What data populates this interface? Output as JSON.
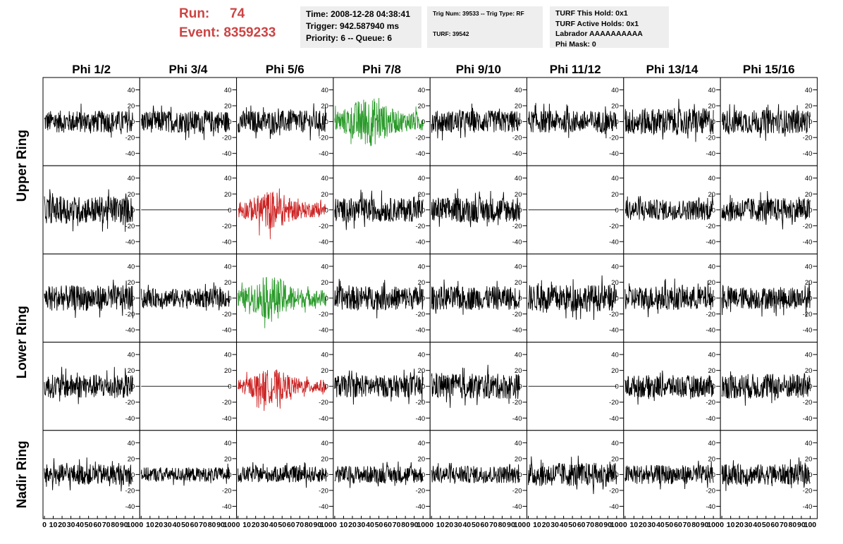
{
  "header": {
    "run_label": "Run:",
    "run_value": "74",
    "event_label": "Event:",
    "event_value": "8359233",
    "time_line": "Time: 2008-12-28 04:38:41",
    "trigger_line": "Trigger: 942.587940 ms",
    "priority_line": "Priority: 6 -- Queue: 6",
    "trig_line": "Trig Num: 39533 -- Trig Type: RF",
    "turf_line": "TURF: 39542",
    "turf_hold_line": "TURF This Hold: 0x1",
    "turf_active_line": "TURF Active Holds: 0x1",
    "labrador_line": "Labrador AAAAAAAAAA",
    "phi_mask_line": "Phi Mask: 0"
  },
  "chart_data": {
    "type": "line",
    "columns": [
      "Phi 1/2",
      "Phi 3/4",
      "Phi 5/6",
      "Phi 7/8",
      "Phi 9/10",
      "Phi 11/12",
      "Phi 13/14",
      "Phi 15/16"
    ],
    "ring_labels": [
      {
        "text": "Upper Ring",
        "rows": [
          0,
          1
        ]
      },
      {
        "text": "Lower Ring",
        "rows": [
          2,
          3
        ]
      },
      {
        "text": "Nadir Ring",
        "rows": [
          4,
          4
        ]
      }
    ],
    "xlim": [
      0,
      100
    ],
    "ylim": [
      -52,
      52
    ],
    "yticks": [
      -40,
      -20,
      0,
      20,
      40
    ],
    "xticks": [
      0,
      10,
      20,
      30,
      40,
      50,
      60,
      70,
      80,
      90,
      100
    ],
    "colors": {
      "normal": "#000000",
      "triggered": "#2a9a2a",
      "l2": "#cc2222"
    },
    "panels": [
      [
        {
          "state": "normal",
          "amp": 14
        },
        {
          "state": "normal",
          "amp": 14
        },
        {
          "state": "normal",
          "amp": 14
        },
        {
          "state": "triggered",
          "amp": 22
        },
        {
          "state": "normal",
          "amp": 14
        },
        {
          "state": "normal",
          "amp": 14
        },
        {
          "state": "normal",
          "amp": 17
        },
        {
          "state": "normal",
          "amp": 15
        }
      ],
      [
        {
          "state": "normal",
          "amp": 17
        },
        {
          "state": "flat",
          "amp": 0
        },
        {
          "state": "l2",
          "amp": 17
        },
        {
          "state": "normal",
          "amp": 15
        },
        {
          "state": "normal",
          "amp": 16
        },
        {
          "state": "flat",
          "amp": 0
        },
        {
          "state": "normal",
          "amp": 13
        },
        {
          "state": "normal",
          "amp": 15
        }
      ],
      [
        {
          "state": "normal",
          "amp": 16
        },
        {
          "state": "normal",
          "amp": 12
        },
        {
          "state": "triggered",
          "amp": 19
        },
        {
          "state": "normal",
          "amp": 15
        },
        {
          "state": "normal",
          "amp": 15
        },
        {
          "state": "normal",
          "amp": 17
        },
        {
          "state": "normal",
          "amp": 15
        },
        {
          "state": "normal",
          "amp": 14
        }
      ],
      [
        {
          "state": "normal",
          "amp": 15
        },
        {
          "state": "flat",
          "amp": 0
        },
        {
          "state": "l2",
          "amp": 15
        },
        {
          "state": "normal",
          "amp": 14
        },
        {
          "state": "normal",
          "amp": 16
        },
        {
          "state": "flat",
          "amp": 0
        },
        {
          "state": "normal",
          "amp": 14
        },
        {
          "state": "normal",
          "amp": 16
        }
      ],
      [
        {
          "state": "normal",
          "amp": 13
        },
        {
          "state": "normal",
          "amp": 9
        },
        {
          "state": "normal",
          "amp": 10
        },
        {
          "state": "normal",
          "amp": 11
        },
        {
          "state": "normal",
          "amp": 11
        },
        {
          "state": "normal",
          "amp": 15
        },
        {
          "state": "normal",
          "amp": 12
        },
        {
          "state": "normal",
          "amp": 13
        }
      ]
    ]
  }
}
